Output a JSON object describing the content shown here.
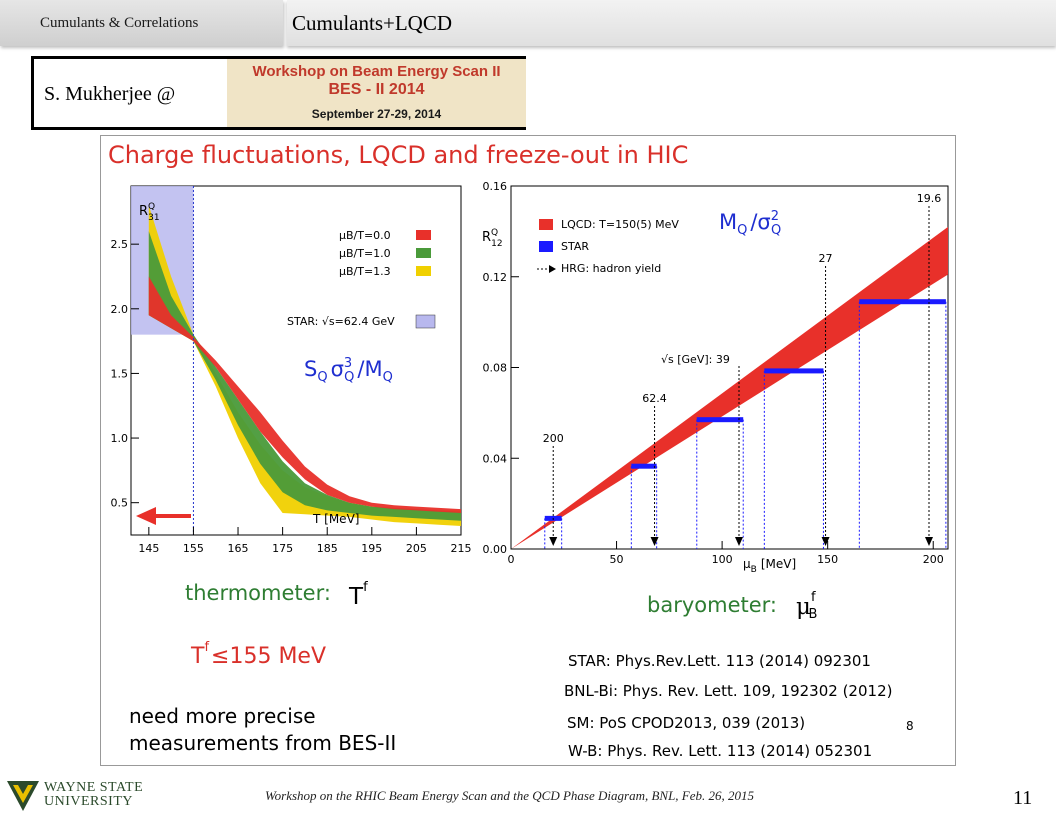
{
  "header": {
    "section_tab": "Cumulants & Correlations",
    "slide_title": "Cumulants+LQCD"
  },
  "speaker": {
    "name": "S. Mukherjee @",
    "banner_line1": "Workshop on Beam Energy Scan II",
    "banner_line2": "BES - II 2014",
    "banner_line3": "September 27-29, 2014"
  },
  "panel": {
    "title": "Charge fluctuations, LQCD and freeze-out in HIC",
    "thermometer_label": "thermometer:",
    "thermometer_symbol": "T",
    "thermometer_sup": "f",
    "tf_text": "155 MeV",
    "baryometer_label": "baryometer:",
    "baryometer_symbol": "μ",
    "baryometer_sup": "f",
    "baryometer_sub": "B",
    "need_line1": "need more precise",
    "need_line2": "measurements from BES-II",
    "refs": [
      "STAR: Phys.Rev.Lett. 113 (2014) 092301",
      "BNL-Bi: Phys. Rev. Lett. 109, 192302 (2012)",
      "SM: PoS CPOD2013, 039 (2013)",
      "W-B: Phys. Rev. Lett. 113 (2014) 052301"
    ],
    "ref_mark": "8"
  },
  "colors": {
    "title_red": "#d9302a",
    "green_text": "#2e7d32",
    "band_red": "#e8302a",
    "band_green": "#4a9a3a",
    "band_yellow": "#f0d000",
    "star_blue": "#1a1aff",
    "star_box": "#b8b8ee",
    "label_blue": "#1f2fd0"
  },
  "chart_data": [
    {
      "type": "area",
      "ylabel": "R",
      "ylabel_sup": "Q",
      "ylabel_sub": "31",
      "xlabel": "T [MeV]",
      "formula": "S",
      "formula_sub": "Q",
      "formula_mid": "σ",
      "formula_sup": "3",
      "formula_end": "/M",
      "formula_end_sub": "Q",
      "xlim": [
        141,
        215
      ],
      "ylim": [
        0.25,
        2.95
      ],
      "xticks": [
        145,
        155,
        165,
        175,
        185,
        195,
        205,
        215
      ],
      "yticks": [
        0.5,
        1.0,
        1.5,
        2.0,
        2.5
      ],
      "ytick_labels": [
        "0.5",
        "1.0",
        "1.5",
        "2.0",
        "2.5"
      ],
      "legend": [
        {
          "label": "μB/T=0.0",
          "color": "#e8302a"
        },
        {
          "label": "μB/T=1.0",
          "color": "#4a9a3a"
        },
        {
          "label": "μB/T=1.3",
          "color": "#f0d000"
        }
      ],
      "star_label": "STAR: √s=62.4 GeV",
      "star_box": {
        "x0": 141,
        "x1": 155,
        "y0": 1.8,
        "y1": 2.95
      },
      "series": [
        {
          "name": "μB/T=1.3",
          "color": "#f0d000",
          "x": [
            145,
            150,
            155,
            160,
            165,
            170,
            175,
            180,
            185,
            190,
            195,
            200,
            205,
            210,
            215
          ],
          "upper": [
            2.8,
            2.25,
            1.8,
            1.5,
            1.2,
            0.95,
            0.75,
            0.62,
            0.55,
            0.5,
            0.47,
            0.46,
            0.45,
            0.44,
            0.44
          ],
          "lower": [
            1.95,
            1.85,
            1.75,
            1.4,
            1.0,
            0.65,
            0.42,
            0.41,
            0.4,
            0.39,
            0.37,
            0.35,
            0.34,
            0.33,
            0.32
          ]
        },
        {
          "name": "μB/T=1.0",
          "color": "#4a9a3a",
          "x": [
            145,
            150,
            155,
            160,
            165,
            170,
            175,
            180,
            185,
            190,
            195,
            200,
            205,
            210,
            215
          ],
          "upper": [
            2.6,
            2.1,
            1.8,
            1.55,
            1.3,
            1.05,
            0.82,
            0.65,
            0.56,
            0.5,
            0.47,
            0.46,
            0.45,
            0.44,
            0.43
          ],
          "lower": [
            1.95,
            1.85,
            1.75,
            1.45,
            1.1,
            0.8,
            0.58,
            0.48,
            0.44,
            0.42,
            0.4,
            0.39,
            0.38,
            0.37,
            0.36
          ]
        },
        {
          "name": "μB/T=0.0",
          "color": "#e8302a",
          "x": [
            145,
            150,
            155,
            160,
            165,
            170,
            175,
            180,
            185,
            190,
            195,
            200,
            205,
            210,
            215
          ],
          "upper": [
            2.25,
            1.95,
            1.78,
            1.6,
            1.4,
            1.2,
            0.98,
            0.78,
            0.64,
            0.55,
            0.5,
            0.48,
            0.47,
            0.46,
            0.45
          ],
          "lower": [
            1.95,
            1.85,
            1.75,
            1.55,
            1.3,
            1.05,
            0.85,
            0.68,
            0.56,
            0.5,
            0.47,
            0.45,
            0.44,
            0.43,
            0.42
          ]
        }
      ],
      "marker_x": 155
    },
    {
      "type": "area",
      "ylabel": "R",
      "ylabel_sup": "Q",
      "ylabel_sub": "12",
      "xlabel": "μ",
      "xlabel_sub": "B",
      "xlabel_end": "[MeV]",
      "formula": "M",
      "formula_sub": "Q",
      "formula_mid": "/σ",
      "formula_sup": "2",
      "formula_end_sub": "Q",
      "xlim": [
        0,
        207
      ],
      "ylim": [
        0,
        0.16
      ],
      "xticks": [
        0,
        50,
        100,
        150,
        200
      ],
      "yticks": [
        0.0,
        0.04,
        0.08,
        0.12,
        0.16
      ],
      "ytick_labels": [
        "0.00",
        "0.04",
        "0.08",
        "0.12",
        "0.16"
      ],
      "legend": [
        {
          "label": "LQCD: T=150(5) MeV",
          "color": "#e8302a"
        },
        {
          "label": "STAR",
          "color": "#1a1aff"
        },
        {
          "label": "HRG: hadron yield",
          "color": "#000000"
        }
      ],
      "band": {
        "x": [
          0,
          207
        ],
        "lower": [
          0.0,
          0.121
        ],
        "upper": [
          0.0,
          0.142
        ]
      },
      "star_points": [
        {
          "label": "200",
          "y": 0.0135,
          "x0": 16,
          "x1": 24
        },
        {
          "label": "62.4",
          "y": 0.0365,
          "x0": 57,
          "x1": 69
        },
        {
          "label": "39",
          "y": 0.057,
          "x0": 88,
          "x1": 110
        },
        {
          "label": "",
          "y": 0.0785,
          "x0": 120,
          "x1": 148
        },
        {
          "label": "",
          "y": 0.109,
          "x0": 165,
          "x1": 206
        }
      ],
      "hrg_points": [
        {
          "label": "200",
          "x": 20
        },
        {
          "label": "62.4",
          "x": 68
        },
        {
          "label": "39",
          "x": 108
        },
        {
          "label": "27",
          "x": 149
        },
        {
          "label": "19.6",
          "x": 198
        }
      ],
      "sqrt_s_label": "√s [GeV]: 39"
    }
  ]
}
